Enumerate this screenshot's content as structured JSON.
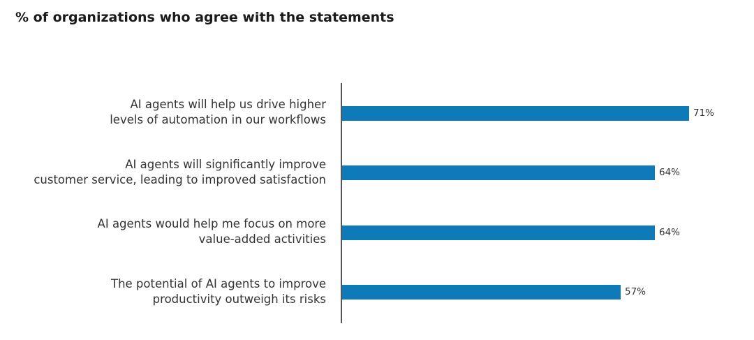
{
  "chart_data": {
    "type": "bar",
    "orientation": "horizontal",
    "title": "% of organizations who agree with the statements",
    "categories": [
      [
        "AI agents will help us drive higher",
        "levels of automation in our workflows"
      ],
      [
        "AI agents will significantly improve",
        "customer service, leading to improved satisfaction"
      ],
      [
        "AI agents would help me focus on more",
        "value-added activities"
      ],
      [
        "The potential of AI agents to improve",
        "productivity outweigh its risks"
      ]
    ],
    "values": [
      71,
      64,
      64,
      57
    ],
    "value_labels": [
      "71%",
      "64%",
      "64%",
      "57%"
    ],
    "unit": "%",
    "xlim": [
      0,
      100
    ],
    "bar_color": "#0f7ab8",
    "grid": false,
    "legend": "none"
  }
}
